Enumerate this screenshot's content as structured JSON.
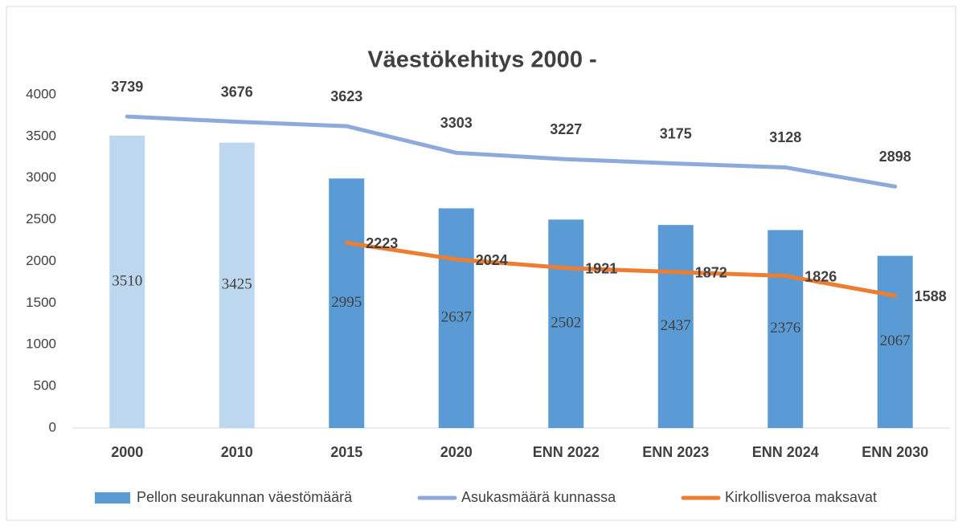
{
  "chart_data": {
    "type": "bar",
    "title": "Väestökehitys   2000 -",
    "categories": [
      "2000",
      "2010",
      "2015",
      "2020",
      "ENN 2022",
      "ENN 2023",
      "ENN 2024",
      "ENN 2030"
    ],
    "series": [
      {
        "name": "Pellon seurakunnan väestömäärä",
        "type": "bar",
        "color": "#5b9bd5",
        "colors": [
          "#bdd7ee",
          "#bdd7ee",
          "#5b9bd5",
          "#5b9bd5",
          "#5b9bd5",
          "#5b9bd5",
          "#5b9bd5",
          "#5b9bd5"
        ],
        "values": [
          3510,
          3425,
          2995,
          2637,
          2502,
          2437,
          2376,
          2067
        ]
      },
      {
        "name": "Asukasmäärä kunnassa",
        "type": "line",
        "color": "#8eaadb",
        "values": [
          3739,
          3676,
          3623,
          3303,
          3227,
          3175,
          3128,
          2898
        ]
      },
      {
        "name": "Kirkollisveroa maksavat",
        "type": "line",
        "color": "#ed7d31",
        "values": [
          null,
          null,
          2223,
          2024,
          1921,
          1872,
          1826,
          1588
        ]
      }
    ],
    "ylim": [
      0,
      4000
    ],
    "yticks": [
      0,
      500,
      1000,
      1500,
      2000,
      2500,
      3000,
      3500,
      4000
    ],
    "grid": false
  }
}
